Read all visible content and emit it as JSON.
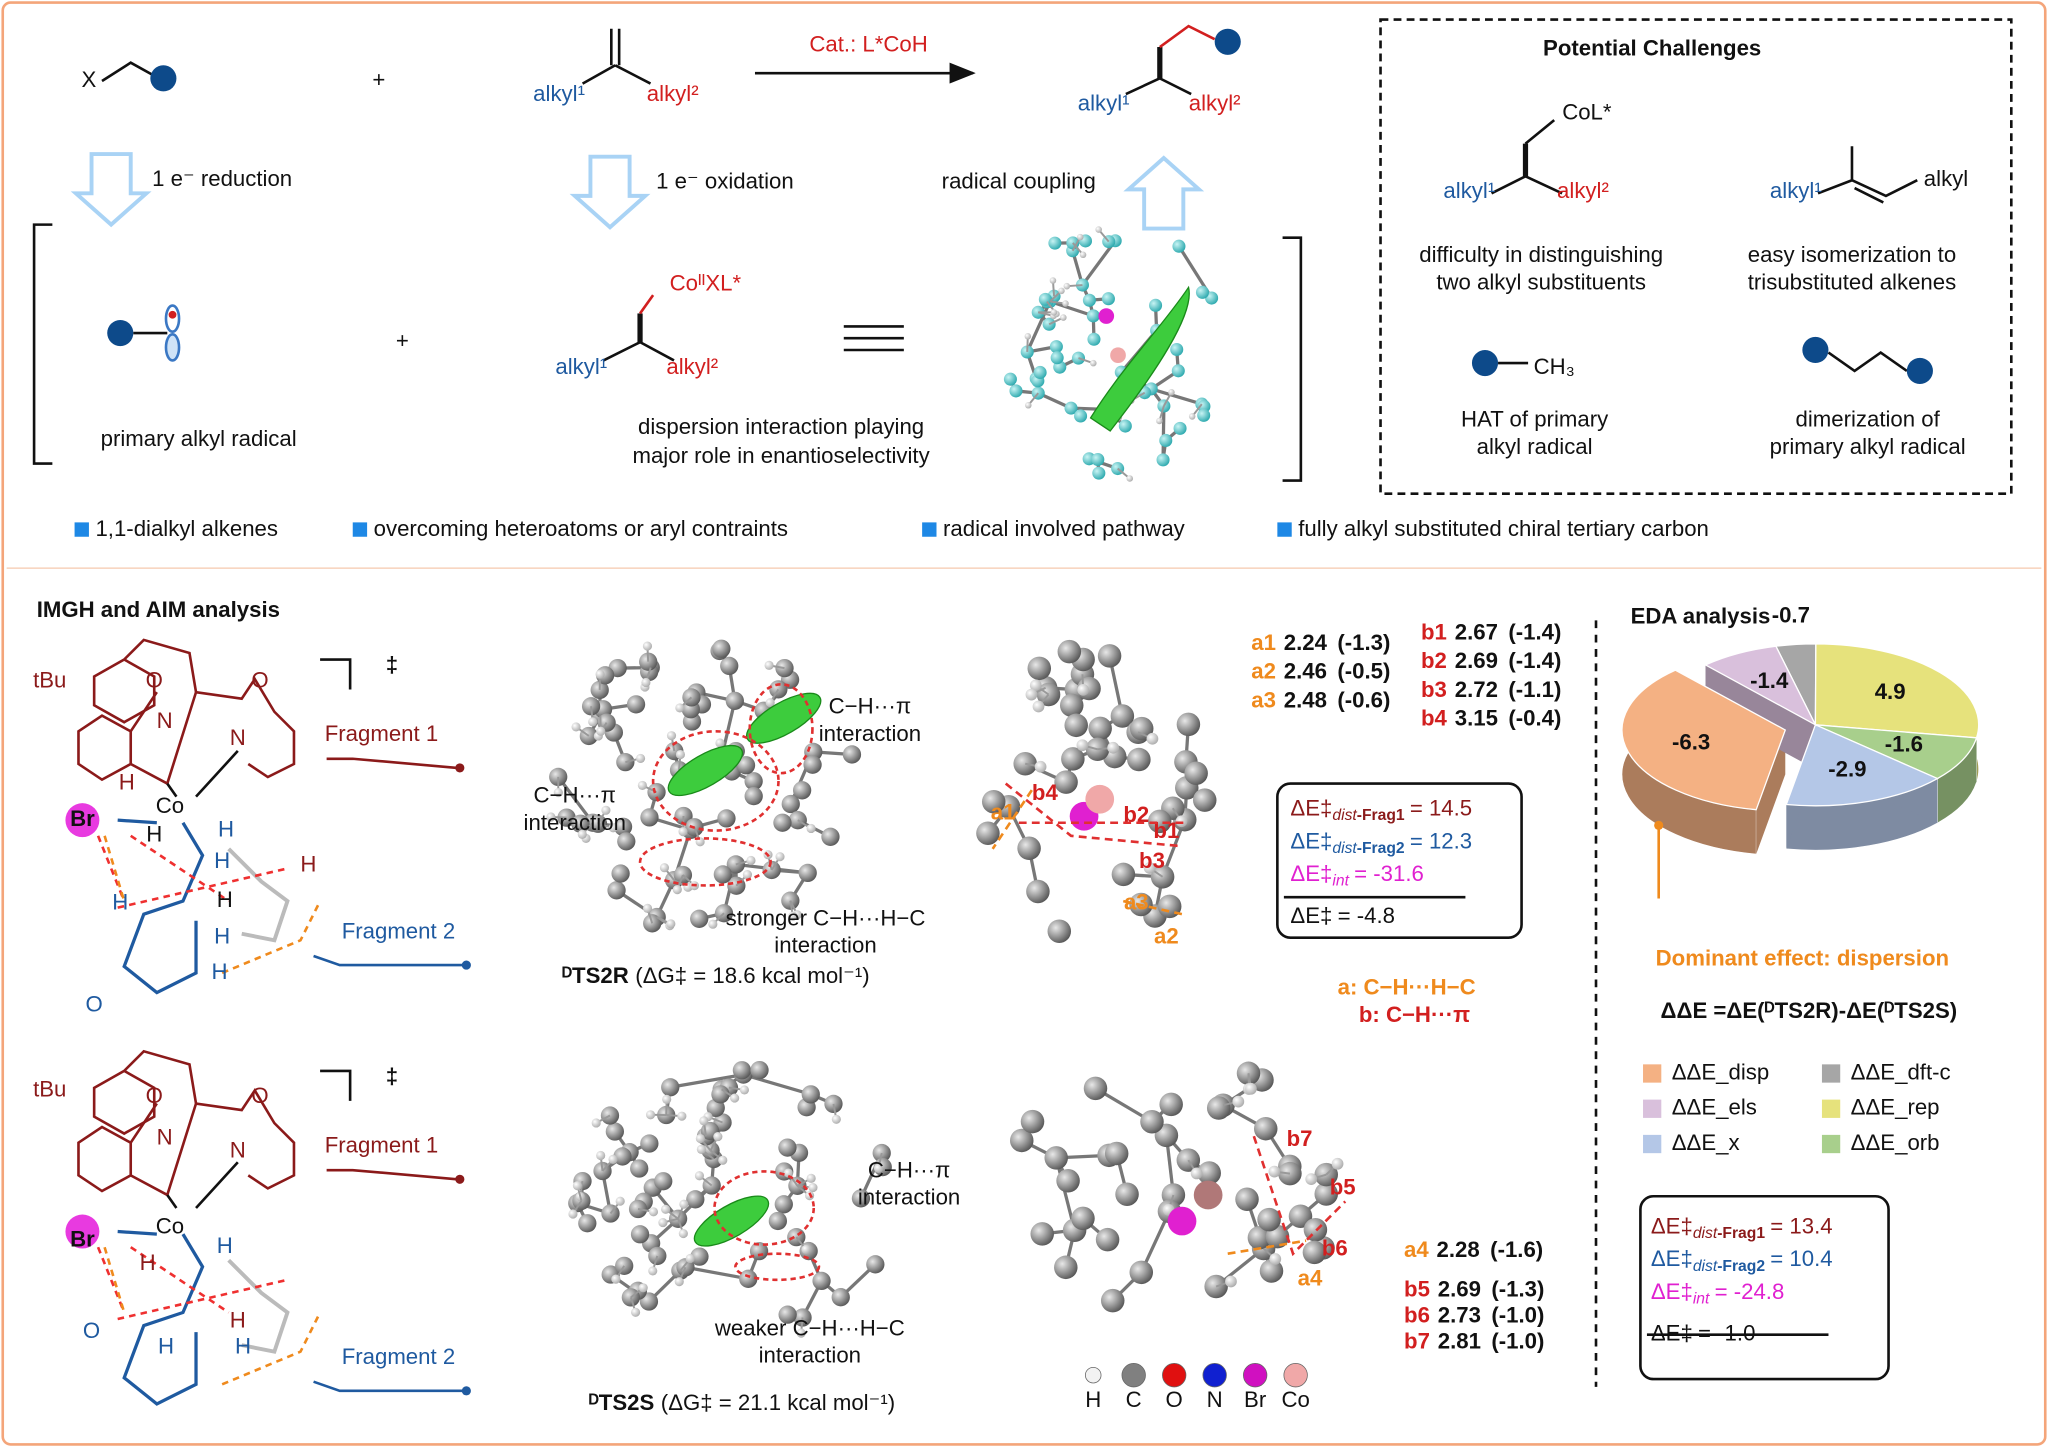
{
  "scheme": {
    "reactant": {
      "leaving_group": "X"
    },
    "plus": "+",
    "alkene": {
      "substituent1": "alkyl¹",
      "substituent2": "alkyl²"
    },
    "catalyst": "Cat.: L*CoH",
    "product": {
      "substituent1": "alkyl¹",
      "substituent2": "alkyl²"
    },
    "steps": [
      "1 e⁻ reduction",
      "1 e⁻ oxidation",
      "radical coupling"
    ],
    "radical": {
      "label": "primary alkyl radical"
    },
    "plus2": "+",
    "intermediate": {
      "metal": "CoᴵᴵXL*",
      "substituent1": "alkyl¹",
      "substituent2": "alkyl²",
      "note": [
        "dispersion interaction playing",
        "major role in enantioselectivity"
      ]
    }
  },
  "challenges": {
    "title": "Potential Challenges",
    "items": [
      {
        "metal": "CoL*",
        "substituent1": "alkyl¹",
        "substituent2": "alkyl²",
        "caption": [
          "difficulty in distinguishing",
          "two alkyl substituents"
        ]
      },
      {
        "substituent1": "alkyl¹",
        "substituent2": "alkyl",
        "caption": [
          "easy isomerization to",
          "trisubstituted alkenes"
        ]
      },
      {
        "group": "CH₃",
        "caption": [
          "HAT of primary",
          "alkyl radical"
        ]
      },
      {
        "caption": [
          "dimerization of",
          "primary alkyl radical"
        ]
      }
    ]
  },
  "features": [
    "1,1-dialkyl alkenes",
    "overcoming heteroatoms or aryl contraints",
    "radical involved pathway",
    "fully alkyl substituted chiral tertiary carbon"
  ],
  "imgh": {
    "title": "IMGH and AIM analysis",
    "structures": [
      {
        "ts": "‡",
        "fragments": [
          "Fragment 1",
          "Fragment 2"
        ],
        "atoms": [
          "tBu",
          "O",
          "O",
          "N",
          "N",
          "Co",
          "Br",
          "H",
          "H",
          "H",
          "H",
          "H",
          "H",
          "H",
          "H",
          "H",
          "O"
        ]
      },
      {
        "ts": "‡",
        "fragments": [
          "Fragment 1",
          "Fragment 2"
        ],
        "atoms": [
          "tBu",
          "O",
          "O",
          "N",
          "N",
          "Co",
          "Br",
          "H",
          "H",
          "H",
          "H",
          "H",
          "O"
        ]
      }
    ]
  },
  "ts2r": {
    "annotations": [
      [
        "C−H···π",
        "interaction"
      ],
      [
        "C−H···π",
        "interaction"
      ],
      [
        "stronger C−H···H−C",
        "interaction"
      ]
    ],
    "caption": {
      "name": "ᴰTS2R",
      "energy": "(ΔG‡ = 18.6 kcal mol⁻¹)"
    },
    "contacts": [
      {
        "id": "a1",
        "distance": 2.24,
        "energy": "(-1.3)"
      },
      {
        "id": "a2",
        "distance": 2.46,
        "energy": "(-0.5)"
      },
      {
        "id": "a3",
        "distance": 2.48,
        "energy": "(-0.6)"
      },
      {
        "id": "b1",
        "distance": 2.67,
        "energy": "(-1.4)"
      },
      {
        "id": "b2",
        "distance": 2.69,
        "energy": "(-1.4)"
      },
      {
        "id": "b3",
        "distance": 2.72,
        "energy": "(-1.1)"
      },
      {
        "id": "b4",
        "distance": 3.15,
        "energy": "(-0.4)"
      }
    ],
    "bond_labels": [
      "b4",
      "b2",
      "b1",
      "b3",
      "a1",
      "a3",
      "a2"
    ],
    "energy_box": [
      {
        "symbol": "ΔE‡",
        "sub": "dist",
        "frag": "-Frag1",
        "value": "= 14.5"
      },
      {
        "symbol": "ΔE‡",
        "sub": "dist",
        "frag": "-Frag2",
        "value": "= 12.3"
      },
      {
        "symbol": "ΔE‡",
        "sub": "int",
        "value": "= -31.6"
      },
      {
        "symbol": "ΔE‡",
        "value": "= -4.8"
      }
    ]
  },
  "contact_legend": [
    "a: C−H···H−C",
    "b: C−H···π"
  ],
  "ts2s": {
    "annotations": [
      [
        "C−H···π",
        "interaction"
      ],
      [
        "weaker C−H···H−C",
        "interaction"
      ]
    ],
    "caption": {
      "name": "ᴰTS2S",
      "energy": "(ΔG‡ = 21.1 kcal mol⁻¹)"
    },
    "contacts": [
      {
        "id": "a4",
        "distance": 2.28,
        "energy": "(-1.6)"
      },
      {
        "id": "b5",
        "distance": 2.69,
        "energy": "(-1.3)"
      },
      {
        "id": "b6",
        "distance": 2.73,
        "energy": "(-1.0)"
      },
      {
        "id": "b7",
        "distance": 2.81,
        "energy": "(-1.0)"
      }
    ],
    "bond_labels": [
      "b7",
      "b5",
      "b6",
      "a4"
    ],
    "energy_box": [
      {
        "symbol": "ΔE‡",
        "sub": "dist",
        "frag": "-Frag1",
        "value": "= 13.4"
      },
      {
        "symbol": "ΔE‡",
        "sub": "dist",
        "frag": "-Frag2",
        "value": "= 10.4"
      },
      {
        "symbol": "ΔE‡",
        "sub": "int",
        "value": "= -24.8"
      },
      {
        "symbol": "ΔE‡",
        "value": "= -1.0"
      }
    ]
  },
  "atom_legend": [
    {
      "label": "H",
      "color": "#f2f2f2"
    },
    {
      "label": "C",
      "color": "#808080"
    },
    {
      "label": "O",
      "color": "#e01010"
    },
    {
      "label": "N",
      "color": "#1020d0"
    },
    {
      "label": "Br",
      "color": "#d010c0"
    },
    {
      "label": "Co",
      "color": "#f0a8a8"
    }
  ],
  "eda": {
    "title": "EDA analysis",
    "slices": [
      {
        "name": "ΔΔE_dft-c",
        "value": -0.7,
        "color": "#a6a6a6"
      },
      {
        "name": "ΔΔE_rep",
        "value": 4.9,
        "color": "#e6e27c"
      },
      {
        "name": "ΔΔE_orb",
        "value": -1.6,
        "color": "#a8cf8c"
      },
      {
        "name": "ΔΔE_x",
        "value": -2.9,
        "color": "#b4c7e7"
      },
      {
        "name": "ΔΔE_disp",
        "value": -6.3,
        "color": "#f4b183"
      },
      {
        "name": "ΔΔE_els",
        "value": -1.4,
        "color": "#d9c0dc"
      }
    ],
    "callout": "Dominant effect: dispersion",
    "formula": "ΔΔE =ΔE(ᴰTS2R)-ΔE(ᴰTS2S)"
  }
}
